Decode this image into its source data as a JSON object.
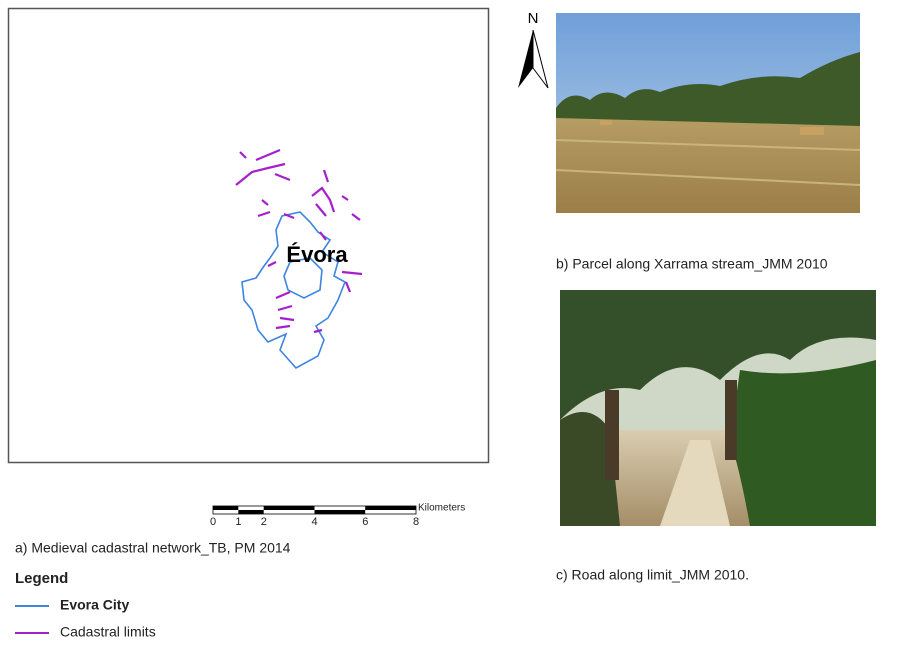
{
  "map": {
    "north": "N",
    "place_label": "Évora",
    "scale_bar": {
      "ticks": [
        0,
        1,
        2,
        4,
        6,
        8
      ],
      "unit": "Kilometers"
    },
    "caption": "a) Medieval cadastral network_TB, PM 2014"
  },
  "legend": {
    "title": "Legend",
    "items": [
      {
        "label": "Evora City",
        "color": "#3d85e0"
      },
      {
        "label": "Cadastral limits",
        "color": "#a61fcc"
      }
    ]
  },
  "photos": [
    {
      "caption": "b) Parcel along Xarrama stream_JMM 2010"
    },
    {
      "caption": "c) Road along limit_JMM 2010."
    }
  ]
}
